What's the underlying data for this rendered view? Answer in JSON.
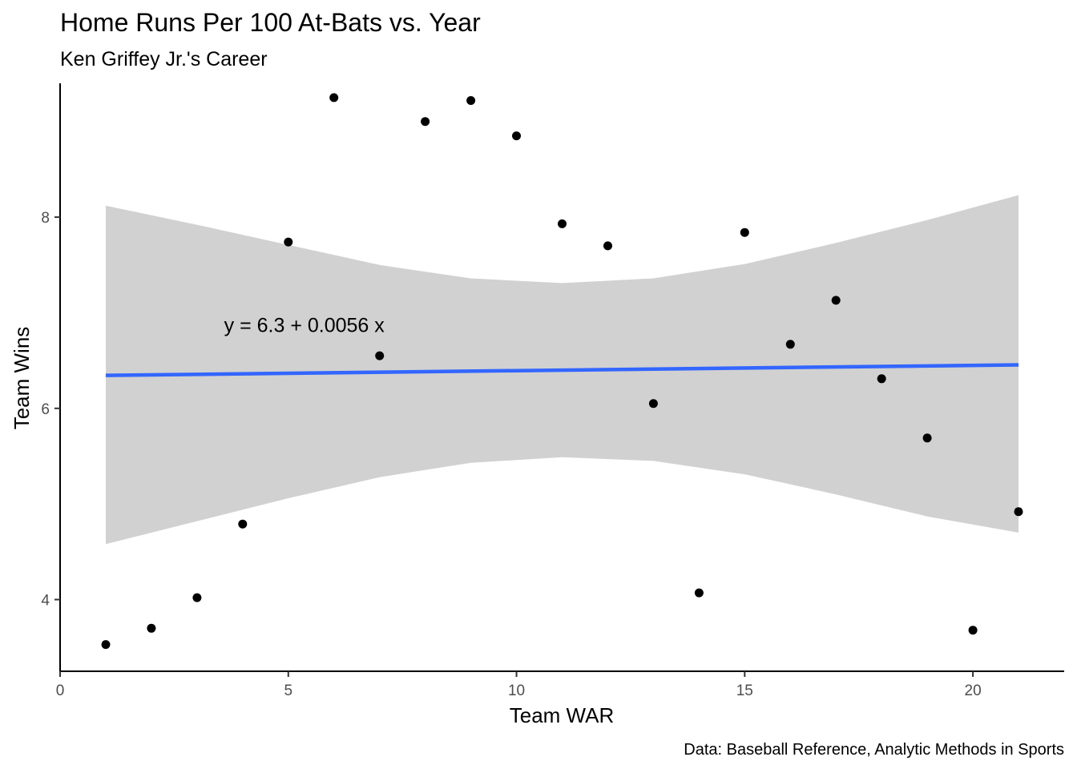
{
  "chart_data": {
    "type": "scatter",
    "title": "Home Runs Per 100 At-Bats vs. Year",
    "subtitle": "Ken Griffey Jr.'s Career",
    "xlabel": "Team WAR",
    "ylabel": "Team Wins",
    "caption": "Data: Baseball Reference, Analytic Methods in Sports",
    "annotation": "y = 6.3 + 0.0056 x",
    "xlim": [
      0,
      22
    ],
    "ylim": [
      3.25,
      9.4
    ],
    "x_ticks": [
      0,
      5,
      10,
      15,
      20
    ],
    "y_ticks": [
      4,
      6,
      8
    ],
    "grid": false,
    "point_color": "#000000",
    "fit_line_color": "#3366ff",
    "ribbon_color": "#cccccc",
    "points": [
      {
        "x": 1,
        "y": 3.53
      },
      {
        "x": 2,
        "y": 3.7
      },
      {
        "x": 3,
        "y": 4.02
      },
      {
        "x": 4,
        "y": 4.79
      },
      {
        "x": 5,
        "y": 7.74
      },
      {
        "x": 6,
        "y": 9.25
      },
      {
        "x": 7,
        "y": 6.55
      },
      {
        "x": 8,
        "y": 9.0
      },
      {
        "x": 9,
        "y": 9.22
      },
      {
        "x": 10,
        "y": 8.85
      },
      {
        "x": 11,
        "y": 7.93
      },
      {
        "x": 12,
        "y": 7.7
      },
      {
        "x": 13,
        "y": 6.05
      },
      {
        "x": 14,
        "y": 4.07
      },
      {
        "x": 15,
        "y": 7.84
      },
      {
        "x": 16,
        "y": 6.67
      },
      {
        "x": 17,
        "y": 7.13
      },
      {
        "x": 18,
        "y": 6.31
      },
      {
        "x": 19,
        "y": 5.69
      },
      {
        "x": 20,
        "y": 3.68
      },
      {
        "x": 21,
        "y": 4.92
      }
    ],
    "fit": {
      "intercept": 6.3,
      "slope": 0.0056,
      "x_range": [
        1,
        21
      ],
      "ribbon": [
        {
          "x": 1,
          "lower": 4.58,
          "upper": 8.12
        },
        {
          "x": 3,
          "lower": 4.82,
          "upper": 7.92
        },
        {
          "x": 5,
          "lower": 5.06,
          "upper": 7.71
        },
        {
          "x": 7,
          "lower": 5.28,
          "upper": 7.5
        },
        {
          "x": 9,
          "lower": 5.43,
          "upper": 7.36
        },
        {
          "x": 11,
          "lower": 5.49,
          "upper": 7.31
        },
        {
          "x": 13,
          "lower": 5.45,
          "upper": 7.36
        },
        {
          "x": 15,
          "lower": 5.31,
          "upper": 7.51
        },
        {
          "x": 17,
          "lower": 5.1,
          "upper": 7.73
        },
        {
          "x": 19,
          "lower": 4.87,
          "upper": 7.97
        },
        {
          "x": 21,
          "lower": 4.7,
          "upper": 8.23
        }
      ]
    }
  }
}
